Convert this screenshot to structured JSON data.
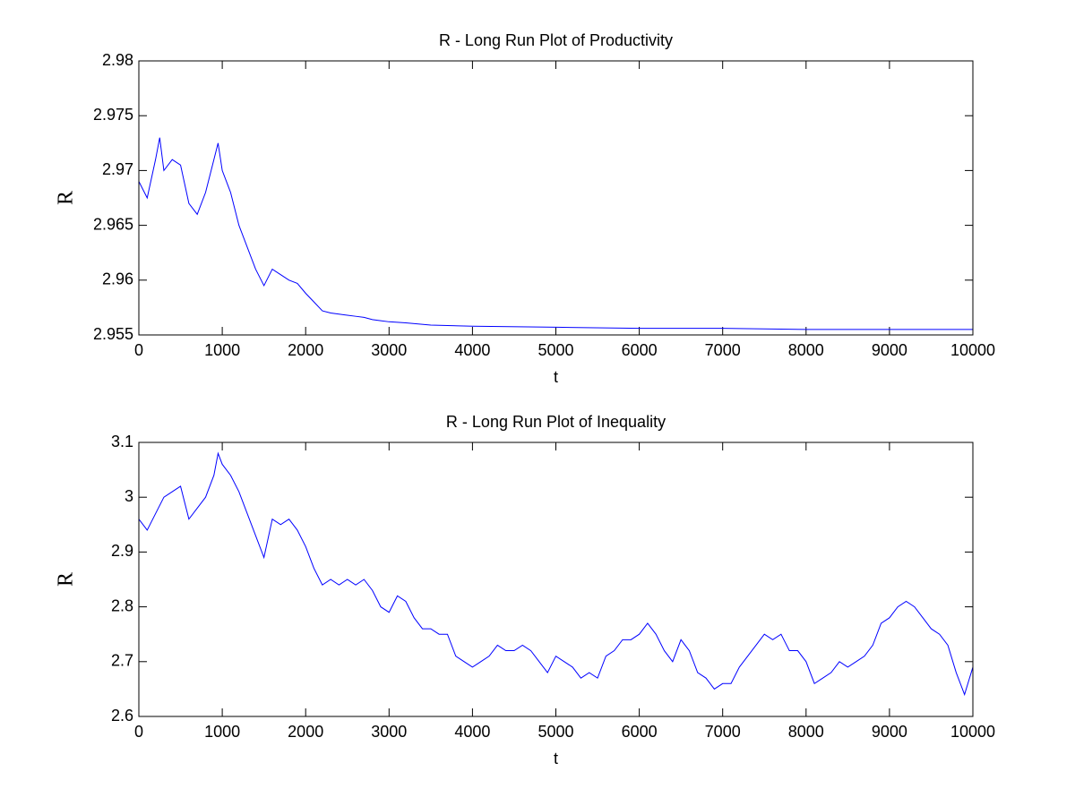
{
  "chart_data": [
    {
      "type": "line",
      "title": "R - Long Run Plot of Productivity",
      "xlabel": "t",
      "ylabel": "R",
      "color": "#0000ff",
      "xlim": [
        0,
        10000
      ],
      "xticks": [
        0,
        1000,
        2000,
        3000,
        4000,
        5000,
        6000,
        7000,
        8000,
        9000,
        10000
      ],
      "ylim": [
        2.955,
        2.98
      ],
      "yticks": [
        2.955,
        2.96,
        2.965,
        2.97,
        2.975,
        2.98
      ],
      "x": [
        0,
        100,
        200,
        250,
        300,
        400,
        500,
        600,
        700,
        800,
        900,
        950,
        1000,
        1100,
        1200,
        1300,
        1400,
        1500,
        1600,
        1700,
        1800,
        1900,
        2000,
        2100,
        2200,
        2300,
        2400,
        2500,
        2600,
        2700,
        2800,
        2900,
        3000,
        3200,
        3500,
        4000,
        5000,
        6000,
        7000,
        8000,
        9000,
        10000
      ],
      "values": [
        2.969,
        2.9675,
        2.971,
        2.973,
        2.97,
        2.971,
        2.9705,
        2.967,
        2.966,
        2.968,
        2.971,
        2.9725,
        2.97,
        2.968,
        2.965,
        2.963,
        2.961,
        2.9595,
        2.961,
        2.9605,
        2.96,
        2.9597,
        2.9588,
        2.958,
        2.9572,
        2.957,
        2.9569,
        2.9568,
        2.9567,
        2.9566,
        2.9564,
        2.9563,
        2.9562,
        2.9561,
        2.9559,
        2.9558,
        2.9557,
        2.9556,
        2.9556,
        2.9555,
        2.9555,
        2.9555
      ]
    },
    {
      "type": "line",
      "title": "R - Long Run Plot of Inequality",
      "xlabel": "t",
      "ylabel": "R",
      "color": "#0000ff",
      "xlim": [
        0,
        10000
      ],
      "xticks": [
        0,
        1000,
        2000,
        3000,
        4000,
        5000,
        6000,
        7000,
        8000,
        9000,
        10000
      ],
      "ylim": [
        2.6,
        3.1
      ],
      "yticks": [
        2.6,
        2.7,
        2.8,
        2.9,
        3,
        3.1
      ],
      "x": [
        0,
        100,
        200,
        300,
        400,
        500,
        600,
        700,
        800,
        900,
        950,
        1000,
        1100,
        1200,
        1300,
        1400,
        1500,
        1600,
        1700,
        1800,
        1900,
        2000,
        2100,
        2200,
        2300,
        2400,
        2500,
        2600,
        2700,
        2800,
        2900,
        3000,
        3100,
        3200,
        3300,
        3400,
        3500,
        3600,
        3700,
        3800,
        3900,
        4000,
        4100,
        4200,
        4300,
        4400,
        4500,
        4600,
        4700,
        4800,
        4900,
        5000,
        5100,
        5200,
        5300,
        5400,
        5500,
        5600,
        5700,
        5800,
        5900,
        6000,
        6100,
        6200,
        6300,
        6400,
        6500,
        6600,
        6700,
        6800,
        6900,
        7000,
        7100,
        7200,
        7300,
        7400,
        7500,
        7600,
        7700,
        7800,
        7900,
        8000,
        8100,
        8200,
        8300,
        8400,
        8500,
        8600,
        8700,
        8800,
        8900,
        9000,
        9100,
        9200,
        9300,
        9400,
        9500,
        9600,
        9700,
        9800,
        9900,
        10000
      ],
      "values": [
        2.96,
        2.94,
        2.97,
        3.0,
        3.01,
        3.02,
        2.96,
        2.98,
        3.0,
        3.04,
        3.08,
        3.06,
        3.04,
        3.01,
        2.97,
        2.93,
        2.89,
        2.96,
        2.95,
        2.96,
        2.94,
        2.91,
        2.87,
        2.84,
        2.85,
        2.84,
        2.85,
        2.84,
        2.85,
        2.83,
        2.8,
        2.79,
        2.82,
        2.81,
        2.78,
        2.76,
        2.76,
        2.75,
        2.75,
        2.71,
        2.7,
        2.69,
        2.7,
        2.71,
        2.73,
        2.72,
        2.72,
        2.73,
        2.72,
        2.7,
        2.68,
        2.71,
        2.7,
        2.69,
        2.67,
        2.68,
        2.67,
        2.71,
        2.72,
        2.74,
        2.74,
        2.75,
        2.77,
        2.75,
        2.72,
        2.7,
        2.74,
        2.72,
        2.68,
        2.67,
        2.65,
        2.66,
        2.66,
        2.69,
        2.71,
        2.73,
        2.75,
        2.74,
        2.75,
        2.72,
        2.72,
        2.7,
        2.66,
        2.67,
        2.68,
        2.7,
        2.69,
        2.7,
        2.71,
        2.73,
        2.77,
        2.78,
        2.8,
        2.81,
        2.8,
        2.78,
        2.76,
        2.75,
        2.73,
        2.68,
        2.64,
        2.69
      ]
    }
  ]
}
